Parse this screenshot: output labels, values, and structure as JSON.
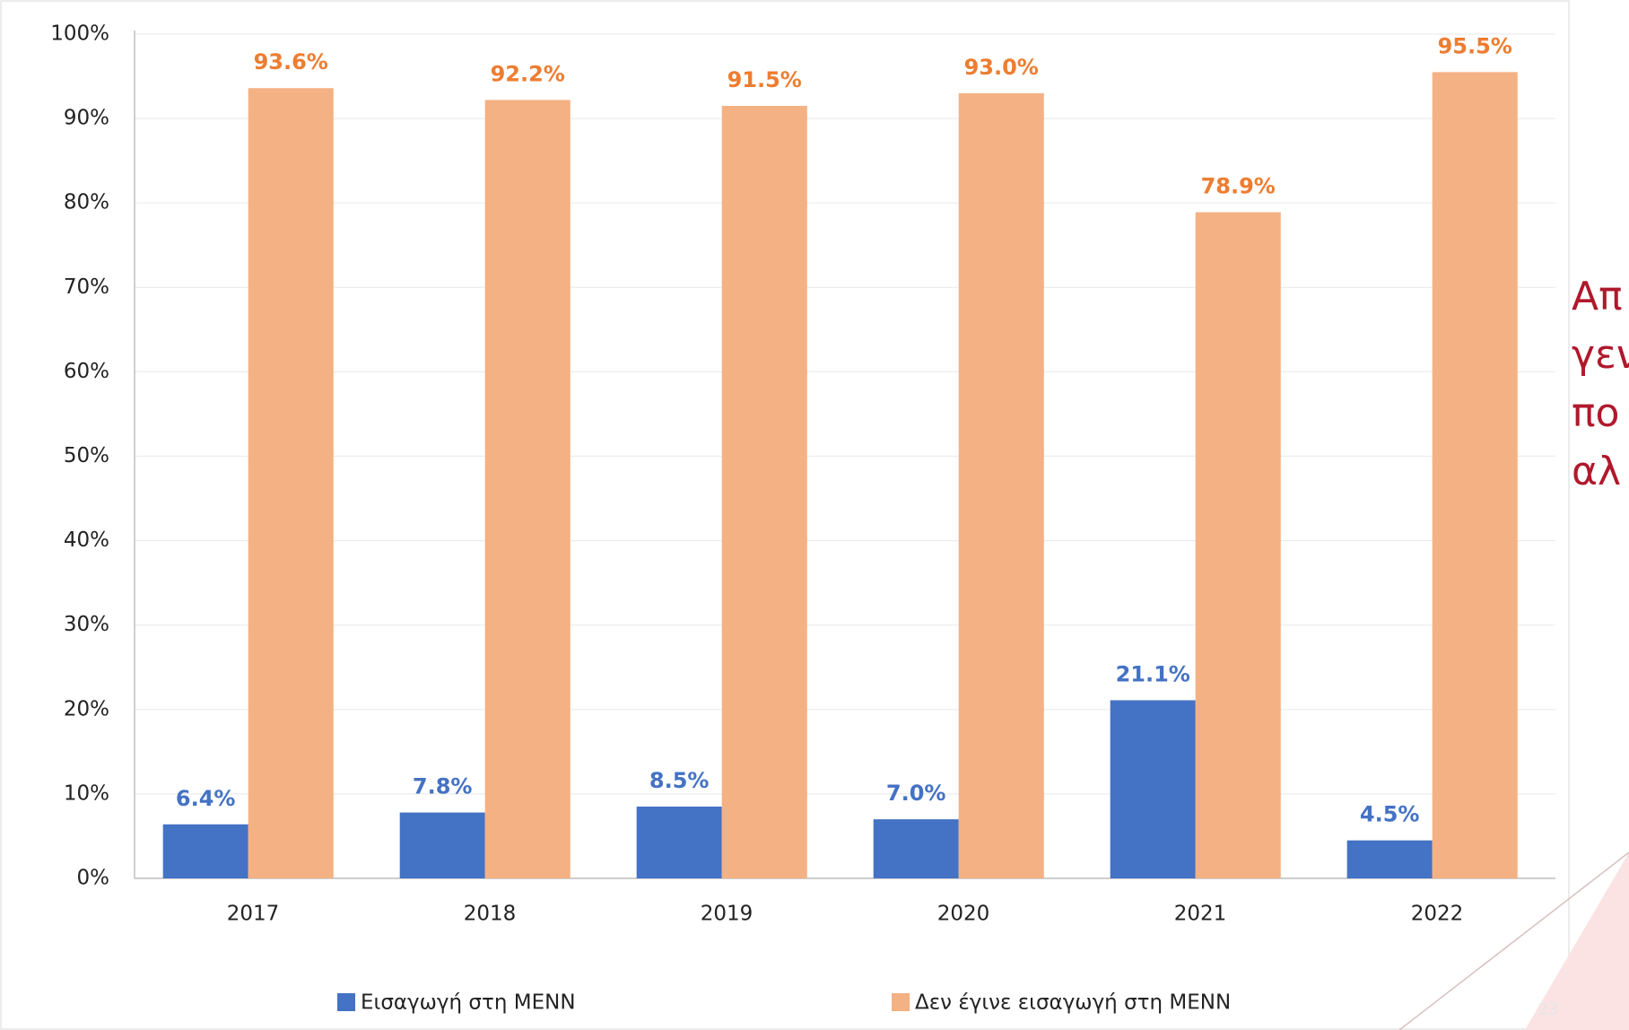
{
  "chart_data": {
    "type": "bar",
    "categories": [
      "2017",
      "2018",
      "2019",
      "2020",
      "2021",
      "2022"
    ],
    "series": [
      {
        "name": "Εισαγωγή στη ΜΕΝΝ",
        "color": "#4472c4",
        "label_color": "#4472c4",
        "values": [
          6.4,
          7.8,
          8.5,
          7.0,
          21.1,
          4.5
        ],
        "value_labels": [
          "6.4%",
          "7.8%",
          "8.5%",
          "7.0%",
          "21.1%",
          "4.5%"
        ]
      },
      {
        "name": "Δεν έγινε εισαγωγή στη ΜΕΝΝ",
        "color": "#f4b183",
        "label_color": "#ed7d31",
        "values": [
          93.6,
          92.2,
          91.5,
          93.0,
          78.9,
          95.5
        ],
        "value_labels": [
          "93.6%",
          "92.2%",
          "91.5%",
          "93.0%",
          "78.9%",
          "95.5%"
        ]
      }
    ],
    "ylim": [
      0,
      100
    ],
    "yticks": [
      {
        "value": 0,
        "label": "0%"
      },
      {
        "value": 10,
        "label": "10%"
      },
      {
        "value": 20,
        "label": "20%"
      },
      {
        "value": 30,
        "label": "30%"
      },
      {
        "value": 40,
        "label": "40%"
      },
      {
        "value": 50,
        "label": "50%"
      },
      {
        "value": 60,
        "label": "60%"
      },
      {
        "value": 70,
        "label": "70%"
      },
      {
        "value": 80,
        "label": "80%"
      },
      {
        "value": 90,
        "label": "90%"
      },
      {
        "value": 100,
        "label": "100%"
      }
    ],
    "grid": true,
    "legend": "bottom"
  },
  "side_text": [
    "Απ",
    "γεν",
    "πο",
    "αλ"
  ],
  "page_number": "23"
}
